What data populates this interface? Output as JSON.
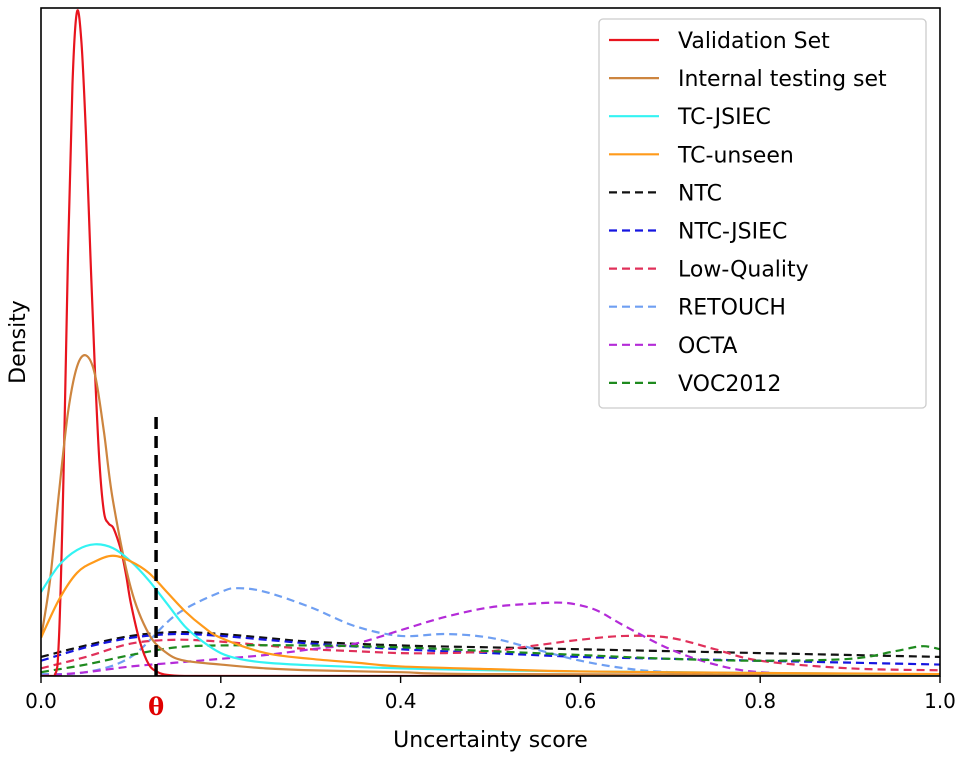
{
  "chart_data": {
    "type": "line",
    "title": "",
    "xlabel": "Uncertainty score",
    "ylabel": "Density",
    "xlim": [
      0.0,
      1.0
    ],
    "ylim": [
      0,
      17.5
    ],
    "xticks": [
      0.0,
      0.2,
      0.4,
      0.6,
      0.8,
      1.0
    ],
    "xtick_labels": [
      "0.0",
      "0.2",
      "0.4",
      "0.6",
      "0.8",
      "1.0"
    ],
    "yticks_visible": false,
    "grid": false,
    "legend_position": "top-right",
    "threshold": {
      "label": "θ",
      "x": 0.128,
      "y_max": 6.8,
      "color": "#000000",
      "style": "dashed"
    },
    "series": [
      {
        "name": "Validation Set",
        "color": "#e8141e",
        "style": "solid",
        "x": [
          0.0,
          0.015,
          0.02,
          0.025,
          0.03,
          0.035,
          0.04,
          0.045,
          0.05,
          0.055,
          0.06,
          0.065,
          0.07,
          0.075,
          0.08,
          0.085,
          0.09,
          0.095,
          0.1,
          0.11,
          0.12,
          0.13,
          0.14,
          0.16,
          0.2,
          1.0
        ],
        "y": [
          0.0,
          0.0,
          1.0,
          5.2,
          11.0,
          15.5,
          17.4,
          16.6,
          14.2,
          11.0,
          8.0,
          5.6,
          4.3,
          4.0,
          3.9,
          3.6,
          3.2,
          2.6,
          1.9,
          0.9,
          0.3,
          0.1,
          0.03,
          0.0,
          0.0,
          0.0
        ]
      },
      {
        "name": "Internal testing set",
        "color": "#cd853f",
        "style": "solid",
        "x": [
          0.0,
          0.01,
          0.02,
          0.03,
          0.04,
          0.05,
          0.06,
          0.07,
          0.08,
          0.1,
          0.12,
          0.14,
          0.16,
          0.2,
          0.25,
          0.3,
          0.4,
          0.5,
          1.0
        ],
        "y": [
          1.0,
          2.5,
          4.8,
          6.9,
          8.1,
          8.4,
          7.9,
          6.4,
          4.6,
          2.3,
          1.1,
          0.6,
          0.4,
          0.3,
          0.2,
          0.15,
          0.1,
          0.05,
          0.02
        ]
      },
      {
        "name": "TC-JSIEC",
        "color": "#33f3f3",
        "style": "solid",
        "x": [
          0.0,
          0.02,
          0.04,
          0.06,
          0.08,
          0.1,
          0.12,
          0.14,
          0.16,
          0.18,
          0.2,
          0.22,
          0.25,
          0.3,
          0.4,
          0.5,
          0.6,
          0.8,
          1.0
        ],
        "y": [
          2.2,
          2.9,
          3.3,
          3.45,
          3.35,
          3.0,
          2.5,
          1.9,
          1.3,
          0.9,
          0.6,
          0.45,
          0.35,
          0.28,
          0.2,
          0.15,
          0.12,
          0.08,
          0.04
        ]
      },
      {
        "name": "TC-unseen",
        "color": "#ff9a1a",
        "style": "solid",
        "x": [
          0.0,
          0.02,
          0.04,
          0.06,
          0.08,
          0.1,
          0.12,
          0.14,
          0.16,
          0.18,
          0.2,
          0.25,
          0.3,
          0.35,
          0.4,
          0.5,
          0.6,
          0.8,
          1.0
        ],
        "y": [
          1.0,
          2.0,
          2.7,
          3.0,
          3.15,
          3.0,
          2.7,
          2.2,
          1.7,
          1.3,
          1.0,
          0.6,
          0.45,
          0.35,
          0.25,
          0.18,
          0.12,
          0.08,
          0.05
        ]
      },
      {
        "name": "NTC",
        "color": "#111111",
        "style": "dashed",
        "x": [
          0.0,
          0.05,
          0.1,
          0.15,
          0.2,
          0.25,
          0.3,
          0.4,
          0.5,
          0.6,
          0.7,
          0.8,
          0.9,
          1.0
        ],
        "y": [
          0.5,
          0.8,
          1.05,
          1.15,
          1.1,
          1.0,
          0.9,
          0.8,
          0.75,
          0.7,
          0.65,
          0.6,
          0.55,
          0.5
        ]
      },
      {
        "name": "NTC-JSIEC",
        "color": "#1515e0",
        "style": "dashed",
        "x": [
          0.0,
          0.05,
          0.1,
          0.15,
          0.2,
          0.25,
          0.3,
          0.4,
          0.5,
          0.6,
          0.7,
          0.8,
          0.9,
          1.0
        ],
        "y": [
          0.4,
          0.75,
          1.0,
          1.1,
          1.05,
          0.95,
          0.85,
          0.7,
          0.6,
          0.5,
          0.45,
          0.4,
          0.35,
          0.3
        ]
      },
      {
        "name": "Low-Quality",
        "color": "#e0305a",
        "style": "dashed",
        "x": [
          0.0,
          0.05,
          0.1,
          0.15,
          0.2,
          0.25,
          0.3,
          0.35,
          0.4,
          0.45,
          0.5,
          0.55,
          0.6,
          0.65,
          0.7,
          0.75,
          0.8,
          0.9,
          1.0
        ],
        "y": [
          0.2,
          0.5,
          0.85,
          0.95,
          0.9,
          0.8,
          0.7,
          0.65,
          0.6,
          0.6,
          0.65,
          0.8,
          0.95,
          1.05,
          1.0,
          0.7,
          0.4,
          0.2,
          0.15
        ]
      },
      {
        "name": "RETOUCH",
        "color": "#6f9ff2",
        "style": "dashed",
        "x": [
          0.0,
          0.05,
          0.1,
          0.15,
          0.2,
          0.22,
          0.25,
          0.3,
          0.35,
          0.4,
          0.45,
          0.5,
          0.55,
          0.6,
          0.65,
          0.7,
          0.8,
          0.9,
          1.0
        ],
        "y": [
          0.05,
          0.1,
          0.5,
          1.6,
          2.2,
          2.3,
          2.2,
          1.8,
          1.3,
          1.05,
          1.1,
          1.0,
          0.7,
          0.4,
          0.2,
          0.1,
          0.05,
          0.02,
          0.01
        ]
      },
      {
        "name": "OCTA",
        "color": "#b42bd8",
        "style": "dashed",
        "x": [
          0.0,
          0.05,
          0.1,
          0.15,
          0.2,
          0.25,
          0.3,
          0.35,
          0.4,
          0.45,
          0.5,
          0.55,
          0.58,
          0.6,
          0.62,
          0.65,
          0.7,
          0.75,
          0.8,
          0.9,
          1.0
        ],
        "y": [
          0.0,
          0.1,
          0.25,
          0.35,
          0.45,
          0.55,
          0.7,
          0.85,
          1.2,
          1.55,
          1.8,
          1.9,
          1.92,
          1.85,
          1.7,
          1.3,
          0.7,
          0.3,
          0.1,
          0.02,
          0.0
        ]
      },
      {
        "name": "VOC2012",
        "color": "#1e8a1e",
        "style": "dashed",
        "x": [
          0.0,
          0.05,
          0.1,
          0.15,
          0.2,
          0.3,
          0.4,
          0.5,
          0.6,
          0.7,
          0.8,
          0.9,
          0.95,
          0.98,
          1.0
        ],
        "y": [
          0.1,
          0.3,
          0.55,
          0.75,
          0.8,
          0.8,
          0.75,
          0.65,
          0.55,
          0.45,
          0.4,
          0.45,
          0.65,
          0.78,
          0.7
        ]
      }
    ]
  }
}
